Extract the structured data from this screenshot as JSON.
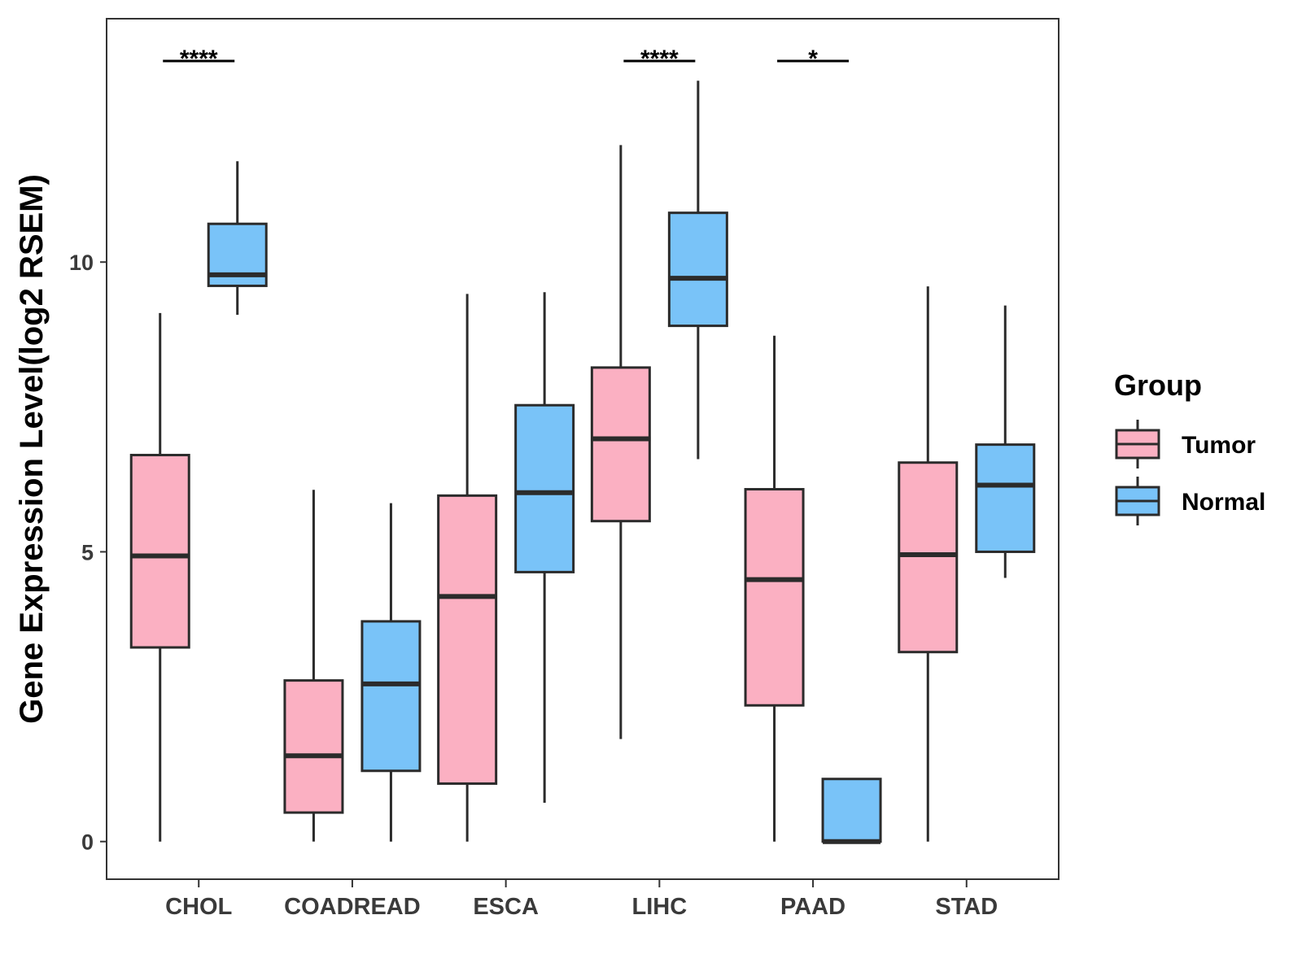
{
  "chart_data": {
    "type": "boxplot",
    "title": "",
    "xlabel": "",
    "ylabel": "Gene Expression Level(log2 RSEM)",
    "ylim": [
      -0.65,
      14.2
    ],
    "yticks": [
      0,
      5,
      10
    ],
    "categories": [
      "CHOL",
      "COADREAD",
      "ESCA",
      "LIHC",
      "PAAD",
      "STAD"
    ],
    "legend": {
      "title": "Group",
      "position": "right",
      "entries": [
        {
          "name": "Tumor",
          "color": "#FBB0C2"
        },
        {
          "name": "Normal",
          "color": "#79C3F8"
        }
      ]
    },
    "series": [
      {
        "name": "Tumor",
        "color": "#FBB0C2",
        "boxes": [
          {
            "min": 0.0,
            "q1": 3.35,
            "median": 4.93,
            "q3": 6.67,
            "max": 9.12
          },
          {
            "min": 0.0,
            "q1": 0.5,
            "median": 1.48,
            "q3": 2.78,
            "max": 6.07
          },
          {
            "min": 0.0,
            "q1": 1.0,
            "median": 4.23,
            "q3": 5.97,
            "max": 9.45
          },
          {
            "min": 1.77,
            "q1": 5.53,
            "median": 6.95,
            "q3": 8.18,
            "max": 12.02
          },
          {
            "min": 0.0,
            "q1": 2.35,
            "median": 4.52,
            "q3": 6.08,
            "max": 8.73
          },
          {
            "min": 0.0,
            "q1": 3.27,
            "median": 4.95,
            "q3": 6.54,
            "max": 9.58
          }
        ]
      },
      {
        "name": "Normal",
        "color": "#79C3F8",
        "boxes": [
          {
            "min": 9.09,
            "q1": 9.59,
            "median": 9.78,
            "q3": 10.66,
            "max": 11.74
          },
          {
            "min": 0.0,
            "q1": 1.22,
            "median": 2.72,
            "q3": 3.8,
            "max": 5.84
          },
          {
            "min": 0.67,
            "q1": 4.65,
            "median": 6.02,
            "q3": 7.53,
            "max": 9.48
          },
          {
            "min": 6.6,
            "q1": 8.9,
            "median": 9.72,
            "q3": 10.85,
            "max": 13.13
          },
          {
            "min": 0.0,
            "q1": 0.0,
            "median": 0.0,
            "q3": 1.08,
            "max": 1.08
          },
          {
            "min": 4.55,
            "q1": 5.0,
            "median": 6.15,
            "q3": 6.85,
            "max": 9.25
          }
        ]
      }
    ],
    "annotations": [
      {
        "category": "CHOL",
        "label": "****",
        "y": 13.47
      },
      {
        "category": "LIHC",
        "label": "****",
        "y": 13.47
      },
      {
        "category": "PAAD",
        "label": "*",
        "y": 13.47
      }
    ]
  }
}
